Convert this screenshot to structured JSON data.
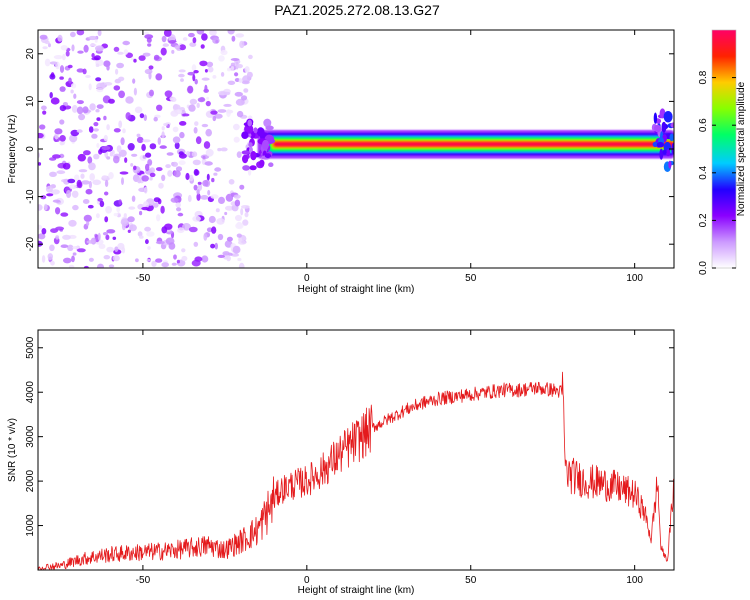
{
  "title": "PAZ1.2025.272.08.13.G27",
  "chart_data": [
    {
      "type": "heatmap",
      "xlabel": "Height of straight line (km)",
      "ylabel": "Frequency (Hz)",
      "xlim": [
        -82,
        112
      ],
      "ylim": [
        -25,
        25
      ],
      "xticks": [
        -50,
        0,
        50,
        100
      ],
      "yticks": [
        -20,
        -10,
        0,
        10,
        20
      ],
      "grid": false,
      "features": [
        {
          "name": "noise region",
          "x_range": [
            -82,
            -15
          ],
          "y_range": [
            -25,
            25
          ],
          "max_amplitude": 0.25
        },
        {
          "name": "signal band",
          "x_range": [
            -15,
            112
          ],
          "center_frequency_hz": 1,
          "half_width_hz": 2,
          "max_amplitude": 1.0
        }
      ],
      "colorbar": {
        "label": "Normalized spectral amplitude",
        "range": [
          0,
          1
        ],
        "ticks": [
          "0.0",
          "0.2",
          "0.4",
          "0.6",
          "0.8"
        ],
        "colors": [
          "#ffffff",
          "#cc99ff",
          "#8a00ff",
          "#2200ff",
          "#00ccff",
          "#00ff66",
          "#88ff00",
          "#ffcc00",
          "#ff2200",
          "#ff0066"
        ]
      }
    },
    {
      "type": "line",
      "xlabel": "Height of straight line (km)",
      "ylabel": "SNR (10 * v/v)",
      "xlim": [
        -82,
        112
      ],
      "ylim": [
        0,
        5400
      ],
      "xticks": [
        -50,
        0,
        50,
        100
      ],
      "yticks": [
        1000,
        2000,
        3000,
        4000,
        5000
      ],
      "grid": false,
      "series": [
        {
          "name": "SNR",
          "color": "#e41a1c",
          "x": [
            -82,
            -75,
            -70,
            -65,
            -60,
            -55,
            -50,
            -45,
            -40,
            -35,
            -30,
            -25,
            -20,
            -15,
            -12,
            -10,
            -8,
            -5,
            0,
            5,
            10,
            15,
            20,
            25,
            30,
            35,
            40,
            45,
            50,
            55,
            60,
            65,
            70,
            75,
            78,
            79,
            80,
            85,
            90,
            95,
            100,
            103,
            105,
            107,
            108,
            110,
            112
          ],
          "y": [
            50,
            100,
            220,
            300,
            350,
            380,
            400,
            420,
            450,
            500,
            550,
            450,
            650,
            900,
            1300,
            1600,
            1800,
            1900,
            2000,
            2250,
            2600,
            2900,
            3200,
            3400,
            3600,
            3750,
            3850,
            3900,
            3950,
            4000,
            4050,
            4050,
            4100,
            4050,
            4000,
            2200,
            2150,
            2000,
            1950,
            1850,
            1700,
            1300,
            700,
            2000,
            500,
            200,
            2000
          ]
        }
      ]
    }
  ]
}
